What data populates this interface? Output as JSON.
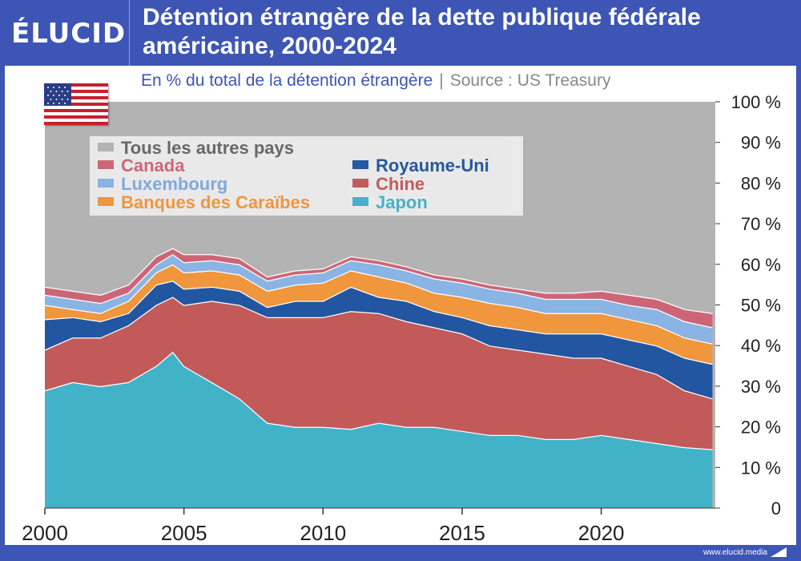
{
  "header": {
    "logo": "ÉLUCID",
    "title_line1": "Détention étrangère de la dette publique fédérale",
    "title_line2": "américaine, 2000-2024"
  },
  "subtitle": {
    "text": "En % du total de la détention étrangère",
    "separator": "|",
    "source": "Source : US Treasury"
  },
  "footer": {
    "url": "www.elucid.media"
  },
  "flag": {
    "icon": "us-flag-icon"
  },
  "colors": {
    "header_bg": "#3d55b4",
    "others": "#b3b3b3",
    "canada": "#cc6677",
    "luxembourg": "#8ab4e3",
    "caribbean": "#f0963c",
    "uk": "#2356a0",
    "china": "#c25a5a",
    "japan": "#42b2c9"
  },
  "chart_data": {
    "type": "area",
    "stacked": true,
    "unit": "%",
    "title": "Détention étrangère de la dette publique fédérale américaine, 2000-2024",
    "subtitle": "En % du total de la détention étrangère",
    "x": [
      2000,
      2001,
      2002,
      2003,
      2004,
      2004.6,
      2005,
      2006,
      2007,
      2008,
      2009,
      2010,
      2011,
      2012,
      2013,
      2014,
      2015,
      2016,
      2017,
      2018,
      2019,
      2020,
      2021,
      2022,
      2023,
      2024
    ],
    "xlim": [
      2000,
      2024.1
    ],
    "ylim": [
      0,
      100
    ],
    "yticks": [
      0,
      10,
      20,
      30,
      40,
      50,
      60,
      70,
      80,
      90,
      100
    ],
    "ytick_labels": [
      "0",
      "10 %",
      "20 %",
      "30 %",
      "40 %",
      "50 %",
      "60 %",
      "70 %",
      "80 %",
      "90 %",
      "100 %"
    ],
    "xticks": [
      2000,
      2005,
      2010,
      2015,
      2020
    ],
    "xtick_labels": [
      "2000",
      "2005",
      "2010",
      "2015",
      "2020"
    ],
    "series": [
      {
        "name": "Japon",
        "color_key": "japan",
        "values": [
          29,
          31,
          30,
          31,
          35,
          38.5,
          35,
          31,
          27,
          21,
          20,
          20,
          19.5,
          21,
          20,
          20,
          19,
          18,
          18,
          17,
          17,
          18,
          17,
          16,
          15,
          14.5
        ]
      },
      {
        "name": "Chine",
        "color_key": "china",
        "values": [
          10,
          11,
          12,
          14,
          15,
          13.5,
          15,
          20,
          23,
          26,
          27,
          27,
          29,
          27,
          26,
          24.5,
          24,
          22,
          21,
          21,
          20,
          19,
          18,
          17,
          14,
          12.5
        ]
      },
      {
        "name": "Royaume-Uni",
        "color_key": "uk",
        "values": [
          7.5,
          5,
          4,
          3,
          5,
          4,
          4,
          3.5,
          3.5,
          2.5,
          4,
          4,
          6,
          4,
          5,
          4,
          4,
          5,
          5,
          5,
          6,
          6,
          6.5,
          7,
          8,
          8.5
        ]
      },
      {
        "name": "Banques des Caraïbes",
        "color_key": "caribbean",
        "values": [
          3.5,
          2,
          2,
          3,
          3,
          4,
          4,
          4,
          4,
          4,
          4,
          4.5,
          4,
          5,
          4.5,
          4.5,
          5,
          5.5,
          5.5,
          5,
          5,
          5,
          5,
          5,
          5,
          5
        ]
      },
      {
        "name": "Luxembourg",
        "color_key": "luxembourg",
        "values": [
          2.5,
          2.5,
          2.5,
          2,
          2,
          2.5,
          2.5,
          2.5,
          2.5,
          2.5,
          2.5,
          2.5,
          2.5,
          3,
          3,
          3.5,
          3.5,
          3.5,
          3.5,
          3.5,
          3.5,
          3.5,
          3.5,
          4,
          4,
          4
        ]
      },
      {
        "name": "Canada",
        "color_key": "canada",
        "values": [
          2,
          2,
          2,
          2,
          2,
          1.5,
          2,
          1.5,
          1.5,
          1,
          1,
          1,
          1,
          1,
          1,
          1,
          1,
          1,
          1,
          1.5,
          1.5,
          2,
          2.5,
          2.5,
          3,
          3.5
        ]
      },
      {
        "name": "Tous les autres pays",
        "color_key": "others",
        "values": [
          45.5,
          46.5,
          47.5,
          45,
          38,
          36,
          37.5,
          37.5,
          38.5,
          43,
          41.5,
          41,
          38,
          39,
          40.5,
          42.5,
          43.5,
          45,
          46,
          47,
          47,
          46.5,
          47.5,
          48.5,
          51,
          52
        ]
      }
    ],
    "legend": [
      {
        "name": "Tous les autres pays",
        "color_key": "others",
        "text_color": "#666666"
      },
      {
        "name": "Canada",
        "color_key": "canada",
        "text_color": "#cc6677"
      },
      {
        "name": "Luxembourg",
        "color_key": "luxembourg",
        "text_color": "#7fa9dc"
      },
      {
        "name": "Banques des Caraïbes",
        "color_key": "caribbean",
        "text_color": "#f0963c"
      },
      {
        "name": "Royaume-Uni",
        "color_key": "uk",
        "text_color": "#2356a0"
      },
      {
        "name": "Chine",
        "color_key": "china",
        "text_color": "#c25a5a"
      },
      {
        "name": "Japon",
        "color_key": "japan",
        "text_color": "#42b2c9"
      }
    ]
  }
}
